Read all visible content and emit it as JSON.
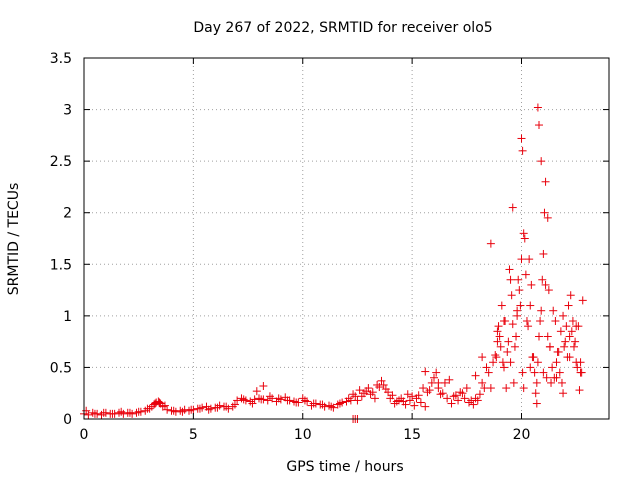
{
  "chart_data": {
    "type": "scatter",
    "title": "Day 267 of 2022, SRMTID for receiver olo5",
    "xlabel": "GPS time / hours",
    "ylabel": "SRMTID / TECUs",
    "xlim": [
      0,
      24
    ],
    "ylim": [
      0,
      3.5
    ],
    "xticks": [
      0,
      5,
      10,
      15,
      20
    ],
    "xtick_labels": [
      "0",
      "5",
      "10",
      "15",
      "20"
    ],
    "yticks": [
      0,
      0.5,
      1,
      1.5,
      2,
      2.5,
      3,
      3.5
    ],
    "ytick_labels": [
      "0",
      "0.5",
      "1",
      "1.5",
      "2",
      "2.5",
      "3",
      "3.5"
    ],
    "grid": true,
    "marker": "+",
    "color": "#e8000b",
    "series": [
      {
        "name": "olo5",
        "x": [
          0.0,
          0.2,
          0.4,
          0.6,
          0.8,
          1.0,
          1.2,
          1.4,
          1.6,
          1.8,
          2.0,
          2.2,
          2.4,
          2.6,
          2.8,
          3.0,
          3.1,
          3.2,
          3.3,
          3.4,
          3.5,
          3.6,
          3.8,
          4.0,
          4.2,
          4.4,
          4.6,
          4.8,
          5.0,
          5.2,
          5.4,
          5.6,
          5.8,
          6.0,
          6.2,
          6.4,
          6.6,
          6.8,
          7.0,
          7.2,
          7.4,
          7.6,
          7.8,
          8.0,
          8.2,
          8.4,
          8.6,
          8.8,
          9.0,
          9.2,
          9.4,
          9.6,
          9.8,
          10.0,
          10.2,
          10.4,
          10.6,
          10.8,
          11.0,
          11.2,
          11.4,
          11.6,
          11.8,
          12.0,
          12.2,
          12.4,
          12.6,
          12.8,
          13.0,
          13.2,
          13.4,
          13.6,
          13.8,
          14.0,
          14.2,
          14.4,
          14.6,
          14.8,
          15.0,
          15.2,
          15.4,
          15.6,
          15.8,
          16.0,
          16.2,
          16.4,
          16.6,
          16.8,
          17.0,
          17.2,
          17.4,
          17.6,
          17.8,
          18.0,
          18.2,
          18.4,
          18.6,
          18.8,
          18.9,
          19.0,
          19.1,
          19.2,
          19.3,
          19.4,
          19.5,
          19.6,
          19.7,
          19.8,
          19.9,
          20.0,
          20.1,
          20.2,
          20.3,
          20.4,
          20.5,
          20.6,
          20.7,
          20.8,
          20.9,
          21.0,
          21.1,
          21.2,
          21.3,
          21.4,
          21.5,
          21.6,
          21.7,
          21.8,
          21.9,
          22.0,
          22.1,
          22.2,
          22.3,
          22.4,
          22.5,
          22.6,
          22.7,
          0.1,
          0.5,
          0.9,
          1.3,
          1.7,
          2.1,
          2.5,
          2.9,
          3.25,
          3.45,
          3.7,
          4.1,
          4.5,
          4.9,
          5.3,
          5.7,
          6.1,
          6.5,
          6.9,
          7.3,
          7.7,
          7.9,
          8.1,
          8.5,
          8.9,
          9.3,
          9.7,
          10.1,
          10.5,
          10.9,
          11.3,
          11.7,
          12.1,
          12.3,
          12.5,
          12.7,
          12.9,
          13.1,
          13.3,
          13.5,
          13.7,
          13.9,
          14.1,
          14.3,
          14.5,
          14.7,
          14.9,
          15.1,
          15.3,
          15.5,
          15.7,
          15.9,
          16.1,
          16.3,
          16.5,
          16.7,
          16.9,
          17.1,
          17.3,
          17.5,
          17.7,
          17.9,
          18.1,
          18.3,
          18.5,
          18.7,
          18.85,
          18.95,
          19.05,
          19.15,
          19.25,
          19.35,
          19.45,
          19.55,
          19.65,
          19.75,
          19.85,
          19.95,
          20.05,
          20.15,
          20.25,
          20.35,
          20.45,
          20.55,
          20.65,
          20.75,
          20.85,
          20.95,
          21.05,
          21.15,
          21.25,
          21.35,
          21.45,
          21.55,
          21.65,
          21.75,
          21.85,
          21.95,
          22.05,
          22.15,
          22.25,
          22.35,
          22.45,
          22.55,
          22.65,
          22.75,
          18.6,
          18.9,
          19.2,
          19.5,
          19.8,
          20.1,
          20.4,
          20.7,
          21.0,
          21.3,
          21.6,
          21.9,
          22.2,
          22.5,
          8.2,
          12.4,
          12.3,
          12.5,
          20.75,
          20.8,
          20.9,
          20.0,
          20.05,
          19.6,
          21.1,
          21.2,
          22.8,
          22.7,
          15.6,
          16.2,
          17.9,
          18.2
        ],
        "y": [
          0.05,
          0.04,
          0.06,
          0.05,
          0.04,
          0.06,
          0.05,
          0.05,
          0.06,
          0.05,
          0.06,
          0.05,
          0.06,
          0.07,
          0.08,
          0.1,
          0.12,
          0.14,
          0.16,
          0.17,
          0.15,
          0.12,
          0.09,
          0.08,
          0.07,
          0.08,
          0.09,
          0.08,
          0.09,
          0.1,
          0.11,
          0.12,
          0.1,
          0.11,
          0.13,
          0.12,
          0.1,
          0.12,
          0.18,
          0.2,
          0.18,
          0.17,
          0.19,
          0.2,
          0.19,
          0.18,
          0.2,
          0.17,
          0.19,
          0.21,
          0.18,
          0.17,
          0.16,
          0.2,
          0.17,
          0.13,
          0.15,
          0.14,
          0.12,
          0.13,
          0.11,
          0.14,
          0.16,
          0.17,
          0.18,
          0.22,
          0.28,
          0.25,
          0.3,
          0.26,
          0.33,
          0.37,
          0.29,
          0.2,
          0.15,
          0.18,
          0.17,
          0.24,
          0.22,
          0.2,
          0.16,
          0.12,
          0.28,
          0.4,
          0.3,
          0.25,
          0.2,
          0.15,
          0.23,
          0.26,
          0.2,
          0.16,
          0.14,
          0.18,
          0.35,
          0.5,
          0.3,
          0.62,
          0.75,
          0.8,
          1.1,
          0.5,
          0.3,
          0.75,
          0.55,
          0.92,
          0.7,
          1.05,
          1.25,
          1.55,
          1.8,
          1.4,
          0.9,
          1.1,
          0.6,
          0.45,
          0.35,
          0.8,
          1.05,
          1.6,
          1.3,
          0.8,
          0.7,
          0.5,
          0.4,
          0.55,
          0.65,
          0.85,
          1.0,
          0.75,
          0.6,
          0.8,
          0.85,
          0.7,
          0.55,
          0.9,
          0.45,
          0.08,
          0.05,
          0.06,
          0.05,
          0.07,
          0.06,
          0.07,
          0.1,
          0.15,
          0.16,
          0.13,
          0.08,
          0.07,
          0.09,
          0.1,
          0.09,
          0.11,
          0.12,
          0.14,
          0.19,
          0.15,
          0.27,
          0.19,
          0.22,
          0.2,
          0.18,
          0.16,
          0.18,
          0.15,
          0.14,
          0.12,
          0.15,
          0.2,
          0.24,
          0.18,
          0.22,
          0.27,
          0.24,
          0.2,
          0.31,
          0.33,
          0.26,
          0.23,
          0.17,
          0.2,
          0.14,
          0.18,
          0.13,
          0.23,
          0.3,
          0.26,
          0.35,
          0.45,
          0.24,
          0.35,
          0.38,
          0.22,
          0.18,
          0.25,
          0.3,
          0.18,
          0.2,
          0.24,
          0.3,
          0.45,
          0.55,
          0.6,
          0.9,
          0.7,
          0.55,
          0.95,
          0.65,
          1.45,
          1.2,
          0.35,
          0.8,
          1.35,
          1.1,
          0.45,
          1.75,
          0.95,
          1.55,
          1.3,
          0.6,
          0.25,
          0.55,
          0.95,
          1.35,
          2.0,
          0.4,
          1.25,
          0.35,
          1.05,
          0.95,
          0.65,
          0.45,
          0.35,
          0.7,
          0.9,
          1.1,
          1.2,
          0.95,
          0.75,
          0.5,
          0.28,
          0.45,
          1.7,
          0.85,
          0.95,
          1.35,
          1.0,
          0.3,
          0.5,
          0.15,
          0.45,
          0.7,
          0.4,
          0.25,
          0.6,
          0.9,
          0.32,
          0.0,
          0.0,
          0.0,
          3.02,
          2.85,
          2.5,
          2.72,
          2.6,
          2.05,
          2.3,
          1.95,
          1.15,
          0.55,
          0.46,
          0.35,
          0.42,
          0.6
        ]
      }
    ]
  }
}
